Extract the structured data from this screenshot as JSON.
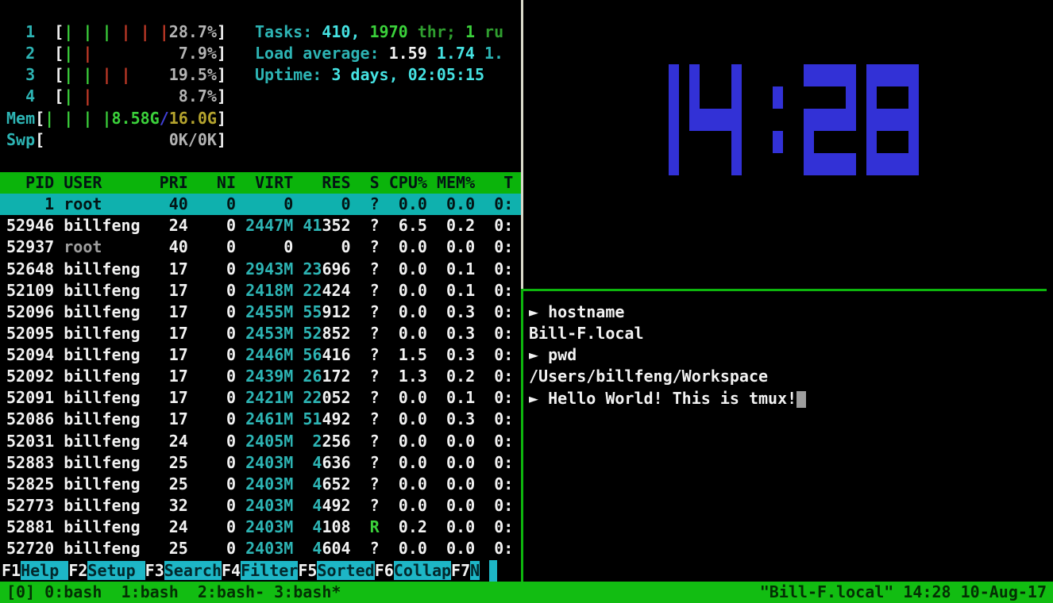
{
  "colors": {
    "background": "#000000",
    "white": "#f2f2f2",
    "gray": "#b3b3b3",
    "dim_gray": "#9e9e9e",
    "cyan": "#2db4b4",
    "bright_cyan": "#45e2e2",
    "green": "#2f9e2f",
    "bright_green": "#3bd13b",
    "red": "#c23a28",
    "yellow": "#b5a42e",
    "blue": "#4040d8",
    "clock_blue": "#3231d6",
    "header_bg": "#0bb40b",
    "selected_bg": "#0fb1ae",
    "fkey_bg": "#1db6c6",
    "status_bg": "#12bd12",
    "border_white": "#dadaca",
    "border_green": "#0db50d"
  },
  "htop": {
    "cpu_meters": [
      {
        "label": "1",
        "bars": [
          "g",
          "g",
          "g",
          "r",
          "r",
          "r"
        ],
        "percent": "28.7%"
      },
      {
        "label": "2",
        "bars": [
          "g",
          "r"
        ],
        "percent": "7.9%"
      },
      {
        "label": "3",
        "bars": [
          "g",
          "g",
          "r",
          "r"
        ],
        "percent": "19.5%"
      },
      {
        "label": "4",
        "bars": [
          "g",
          "r"
        ],
        "percent": "8.7%"
      }
    ],
    "mem_meter": {
      "label": "Mem",
      "bars": [
        "g",
        "g",
        "g",
        "g"
      ],
      "used": "8.58G",
      "sep": "/",
      "total": "16.0G"
    },
    "swp_meter": {
      "label": "Swp",
      "value": "0K/0K"
    },
    "tasks_line": [
      [
        "Tasks: ",
        "cyan"
      ],
      [
        "410, ",
        "bcyan"
      ],
      [
        "1970 ",
        "bgreen"
      ],
      [
        "thr; ",
        "green"
      ],
      [
        "1 ",
        "bgreen"
      ],
      [
        "ru",
        "green"
      ]
    ],
    "load_line": [
      [
        "Load average: ",
        "cyan"
      ],
      [
        "1.59 ",
        "white"
      ],
      [
        "1.74 ",
        "bcyan"
      ],
      [
        "1.",
        "cyan"
      ]
    ],
    "uptime_line": [
      [
        "Uptime: ",
        "cyan"
      ],
      [
        "3 days, 02:05:15",
        "bcyan"
      ]
    ],
    "table": {
      "columns": {
        "pid": "PID",
        "user": "USER",
        "pri": "PRI",
        "ni": "NI",
        "virt": "VIRT",
        "res": "RES",
        "s": "S",
        "cpu": "CPU%",
        "mem": "MEM%",
        "time": "T"
      },
      "rows": [
        {
          "pid": "1",
          "user": "root",
          "pri": "40",
          "ni": "0",
          "virt": "0",
          "res": "0",
          "s": "?",
          "cpu": "0.0",
          "mem": "0.0",
          "time": "0:",
          "selected": true
        },
        {
          "pid": "52946",
          "user": "billfeng",
          "pri": "24",
          "ni": "0",
          "virt": "2447M",
          "res": "41352",
          "s": "?",
          "cpu": "6.5",
          "mem": "0.2",
          "time": "0:"
        },
        {
          "pid": "52937",
          "user": "root",
          "pri": "40",
          "ni": "0",
          "virt": "0",
          "res": "0",
          "s": "?",
          "cpu": "0.0",
          "mem": "0.0",
          "time": "0:",
          "user_dim": true
        },
        {
          "pid": "52648",
          "user": "billfeng",
          "pri": "17",
          "ni": "0",
          "virt": "2943M",
          "res": "23696",
          "s": "?",
          "cpu": "0.0",
          "mem": "0.1",
          "time": "0:"
        },
        {
          "pid": "52109",
          "user": "billfeng",
          "pri": "17",
          "ni": "0",
          "virt": "2418M",
          "res": "22424",
          "s": "?",
          "cpu": "0.0",
          "mem": "0.1",
          "time": "0:"
        },
        {
          "pid": "52096",
          "user": "billfeng",
          "pri": "17",
          "ni": "0",
          "virt": "2455M",
          "res": "55912",
          "s": "?",
          "cpu": "0.0",
          "mem": "0.3",
          "time": "0:"
        },
        {
          "pid": "52095",
          "user": "billfeng",
          "pri": "17",
          "ni": "0",
          "virt": "2453M",
          "res": "52852",
          "s": "?",
          "cpu": "0.0",
          "mem": "0.3",
          "time": "0:"
        },
        {
          "pid": "52094",
          "user": "billfeng",
          "pri": "17",
          "ni": "0",
          "virt": "2446M",
          "res": "56416",
          "s": "?",
          "cpu": "1.5",
          "mem": "0.3",
          "time": "0:"
        },
        {
          "pid": "52092",
          "user": "billfeng",
          "pri": "17",
          "ni": "0",
          "virt": "2439M",
          "res": "26172",
          "s": "?",
          "cpu": "1.3",
          "mem": "0.2",
          "time": "0:"
        },
        {
          "pid": "52091",
          "user": "billfeng",
          "pri": "17",
          "ni": "0",
          "virt": "2421M",
          "res": "22052",
          "s": "?",
          "cpu": "0.0",
          "mem": "0.1",
          "time": "0:"
        },
        {
          "pid": "52086",
          "user": "billfeng",
          "pri": "17",
          "ni": "0",
          "virt": "2461M",
          "res": "51492",
          "s": "?",
          "cpu": "0.0",
          "mem": "0.3",
          "time": "0:"
        },
        {
          "pid": "52031",
          "user": "billfeng",
          "pri": "24",
          "ni": "0",
          "virt": "2405M",
          "res": "2256",
          "s": "?",
          "cpu": "0.0",
          "mem": "0.0",
          "time": "0:"
        },
        {
          "pid": "52883",
          "user": "billfeng",
          "pri": "25",
          "ni": "0",
          "virt": "2403M",
          "res": "4636",
          "s": "?",
          "cpu": "0.0",
          "mem": "0.0",
          "time": "0:"
        },
        {
          "pid": "52825",
          "user": "billfeng",
          "pri": "25",
          "ni": "0",
          "virt": "2403M",
          "res": "4652",
          "s": "?",
          "cpu": "0.0",
          "mem": "0.0",
          "time": "0:"
        },
        {
          "pid": "52773",
          "user": "billfeng",
          "pri": "32",
          "ni": "0",
          "virt": "2403M",
          "res": "4492",
          "s": "?",
          "cpu": "0.0",
          "mem": "0.0",
          "time": "0:"
        },
        {
          "pid": "52881",
          "user": "billfeng",
          "pri": "24",
          "ni": "0",
          "virt": "2403M",
          "res": "4108",
          "s": "R",
          "cpu": "0.2",
          "mem": "0.0",
          "time": "0:"
        },
        {
          "pid": "52720",
          "user": "billfeng",
          "pri": "25",
          "ni": "0",
          "virt": "2403M",
          "res": "4604",
          "s": "?",
          "cpu": "0.0",
          "mem": "0.0",
          "time": "0:"
        }
      ]
    },
    "fkeys": [
      {
        "key": "F1",
        "label": "Help  "
      },
      {
        "key": "F2",
        "label": "Setup "
      },
      {
        "key": "F3",
        "label": "Search"
      },
      {
        "key": "F4",
        "label": "Filter"
      },
      {
        "key": "F5",
        "label": "Sorted"
      },
      {
        "key": "F6",
        "label": "Collap"
      },
      {
        "key": "F7",
        "label": "N"
      }
    ]
  },
  "clock": {
    "time": "14:28"
  },
  "shell": {
    "prompt": "►",
    "lines": [
      {
        "type": "cmd",
        "text": "hostname"
      },
      {
        "type": "out",
        "text": "Bill-F.local"
      },
      {
        "type": "cmd",
        "text": "pwd"
      },
      {
        "type": "out",
        "text": "/Users/billfeng/Workspace"
      },
      {
        "type": "cmd",
        "text": "Hello World! This is tmux!",
        "cursor": true
      }
    ]
  },
  "status_bar": {
    "left": "[0] 0:bash  1:bash  2:bash- 3:bash*",
    "right": "\"Bill-F.local\" 14:28 10-Aug-17"
  }
}
